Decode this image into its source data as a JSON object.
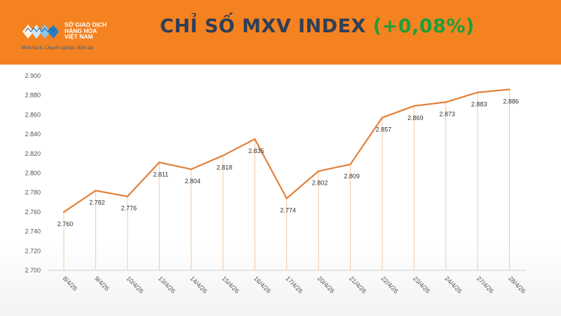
{
  "header": {
    "logo": {
      "line1": "SỞ GIAO DỊCH",
      "line2": "HÀNG HÓA",
      "line3": "VIỆT NAM",
      "slogan": "Minh bạch, Chuyên nghiệp, Hiện đại"
    },
    "title_main": "CHỈ SỐ MXV INDEX ",
    "title_change": "(+0,08%)",
    "colors": {
      "bar": "#f58220",
      "title": "#2f3f56",
      "change": "#1e9e3a"
    }
  },
  "chart_data": {
    "type": "line",
    "title": "CHỈ SỐ MXV INDEX (+0,08%)",
    "xlabel": "",
    "ylabel": "",
    "ylim": [
      2700,
      2900
    ],
    "yticks": [
      "2.700",
      "2.720",
      "2.740",
      "2.760",
      "2.780",
      "2.800",
      "2.820",
      "2.840",
      "2.860",
      "2.880",
      "2.900"
    ],
    "categories": [
      "8/4/26",
      "9/4/26",
      "10/4/26",
      "13/4/26",
      "14/4/26",
      "15/4/26",
      "16/4/26",
      "17/4/26",
      "20/4/26",
      "21/4/26",
      "22/4/26",
      "23/4/26",
      "24/4/26",
      "27/4/26",
      "28/4/26"
    ],
    "values": [
      2760,
      2782,
      2776,
      2811,
      2804,
      2818,
      2835,
      2774,
      2802,
      2809,
      2857,
      2869,
      2873,
      2883,
      2886
    ],
    "labels": [
      "2.760",
      "2.782",
      "2.776",
      "2.811",
      "2.804",
      "2.818",
      "2.835",
      "2.774",
      "2.802",
      "2.809",
      "2.857",
      "2.869",
      "2.873",
      "2.883",
      "2.886"
    ],
    "line_color": "#e2803a",
    "drop_line_color": "#f3c9a6",
    "grid": false,
    "legend": "none"
  }
}
